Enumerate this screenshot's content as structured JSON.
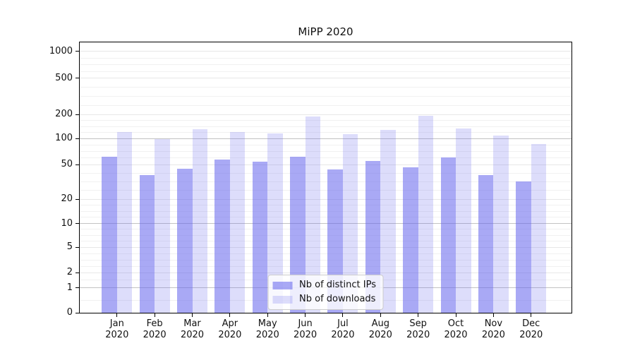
{
  "chart_data": {
    "type": "bar",
    "title": "MiPP 2020",
    "categories": [
      "Jan",
      "Feb",
      "Mar",
      "Apr",
      "May",
      "Jun",
      "Jul",
      "Aug",
      "Sep",
      "Oct",
      "Nov",
      "Dec"
    ],
    "x_tick_second_line": "2020",
    "series": [
      {
        "name": "Nb of distinct IPs",
        "color": "rgba(99,99,237,0.55)",
        "values": [
          61,
          38,
          45,
          57,
          54,
          61,
          44,
          55,
          46,
          60,
          38,
          32
        ]
      },
      {
        "name": "Nb of downloads",
        "color": "rgba(99,99,237,0.22)",
        "values": [
          121,
          98,
          131,
          121,
          116,
          189,
          112,
          128,
          193,
          132,
          108,
          86
        ]
      }
    ],
    "y_ticks": [
      0,
      1,
      2,
      5,
      10,
      20,
      50,
      100,
      200,
      500,
      1000
    ],
    "y_tick_labels": [
      "0",
      "1",
      "2",
      "5",
      "10",
      "20",
      "50",
      "100",
      "200",
      "500",
      "1000"
    ],
    "y_scale": "symlog",
    "ylim": [
      0,
      1280
    ],
    "xlabel": "",
    "ylabel": "",
    "grid": true,
    "legend_position": "lower center"
  },
  "colors": {
    "bar_dark": "rgba(99,99,237,0.55)",
    "bar_light": "rgba(99,99,237,0.22)",
    "grid_major": "#c3c3c3",
    "grid_minor": "#e7e7e7",
    "grid_faint": "#f1f1f1",
    "spine": "#000000",
    "background": "#ffffff"
  }
}
